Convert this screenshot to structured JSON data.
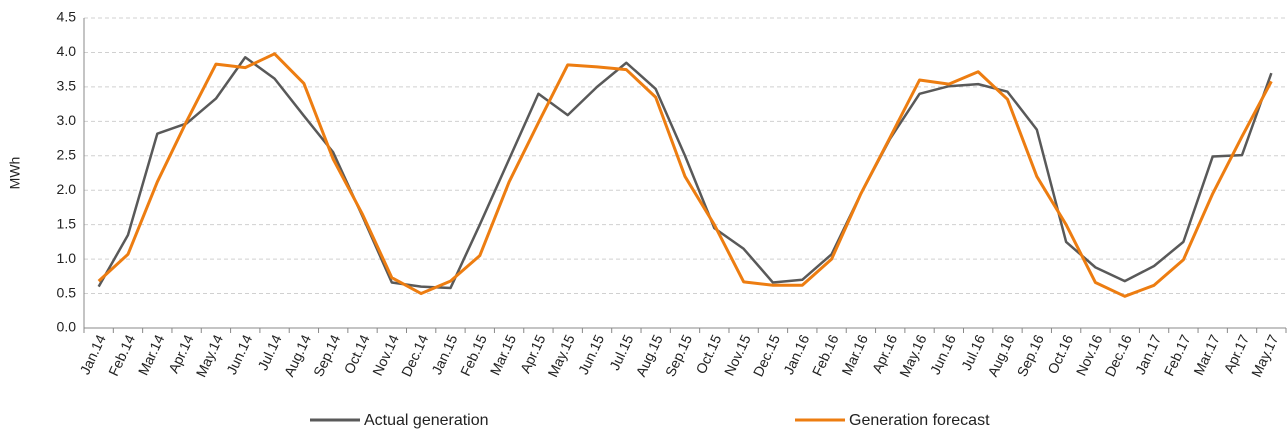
{
  "chart_data": {
    "type": "line",
    "y_label": "MWh",
    "categories": [
      "Jan.14",
      "Feb.14",
      "Mar.14",
      "Apr.14",
      "May.14",
      "Jun.14",
      "Jul.14",
      "Aug.14",
      "Sep.14",
      "Oct.14",
      "Nov.14",
      "Dec.14",
      "Jan.15",
      "Feb.15",
      "Mar.15",
      "Apr.15",
      "May.15",
      "Jun.15",
      "Jul.15",
      "Aug.15",
      "Sep.15",
      "Oct.15",
      "Nov.15",
      "Dec.15",
      "Jan.16",
      "Feb.16",
      "Mar.16",
      "Apr.16",
      "May.16",
      "Jun.16",
      "Jul.16",
      "Aug.16",
      "Sep.16",
      "Oct.16",
      "Nov.16",
      "Dec.16",
      "Jan.17",
      "Feb.17",
      "Mar.17",
      "Apr.17",
      "May.17"
    ],
    "series": [
      {
        "name": "Actual generation",
        "color": "#595959",
        "values": [
          0.6,
          1.35,
          2.82,
          2.97,
          3.33,
          3.93,
          3.62,
          3.08,
          2.55,
          1.62,
          0.66,
          0.6,
          0.58,
          1.5,
          2.45,
          3.4,
          3.09,
          3.5,
          3.85,
          3.47,
          2.5,
          1.45,
          1.15,
          0.66,
          0.7,
          1.07,
          1.95,
          2.75,
          3.4,
          3.51,
          3.54,
          3.43,
          2.88,
          1.25,
          0.88,
          0.68,
          0.9,
          1.25,
          2.49,
          2.51,
          3.7
        ]
      },
      {
        "name": "Generation forecast",
        "color": "#ed7d11",
        "values": [
          0.68,
          1.07,
          2.12,
          3.0,
          3.83,
          3.78,
          3.98,
          3.55,
          2.45,
          1.65,
          0.73,
          0.5,
          0.68,
          1.05,
          2.12,
          2.98,
          3.82,
          3.79,
          3.75,
          3.35,
          2.2,
          1.5,
          0.67,
          0.62,
          0.62,
          1.0,
          1.95,
          2.77,
          3.6,
          3.54,
          3.72,
          3.32,
          2.2,
          1.5,
          0.66,
          0.46,
          0.62,
          0.99,
          1.95,
          2.78,
          3.58
        ]
      }
    ],
    "ylim": [
      0,
      4.5
    ],
    "yticks": [
      {
        "value": 0,
        "label": "0.0"
      },
      0.5,
      {
        "value": 1,
        "label": "1.0"
      },
      1.5,
      {
        "value": 2,
        "label": "2.0"
      },
      2.5,
      {
        "value": 3,
        "label": "3.0"
      },
      3.5,
      {
        "value": 4,
        "label": "4.0"
      },
      4.5
    ],
    "grid": true,
    "legend": "bottom"
  }
}
